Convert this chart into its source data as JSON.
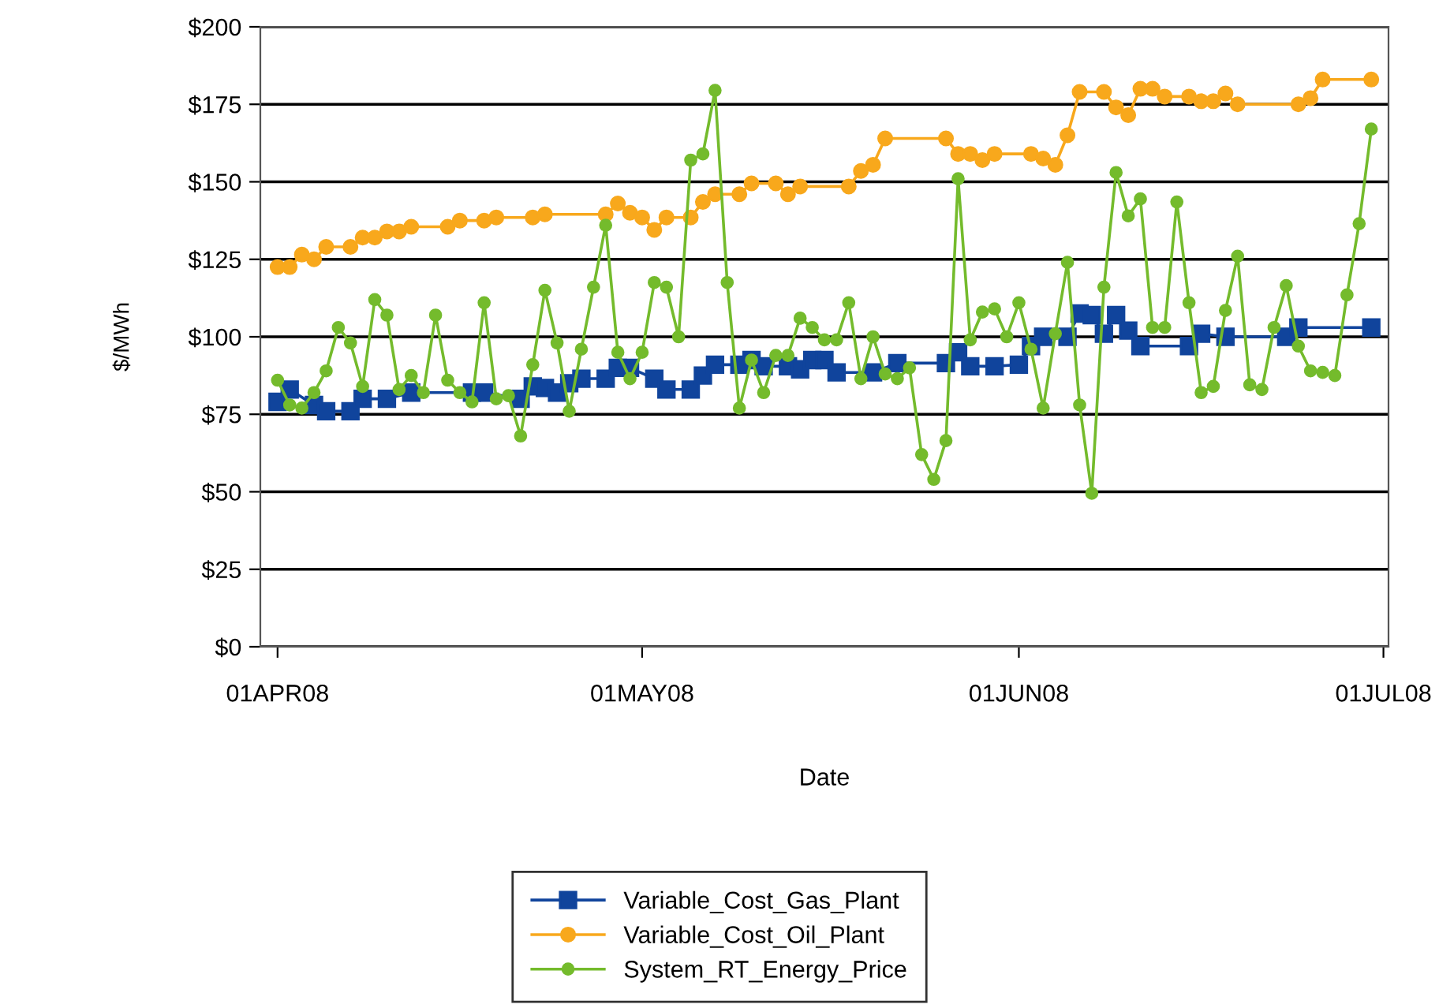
{
  "chart_data": {
    "type": "line",
    "xlabel": "Date",
    "ylabel": "$/MWh",
    "x": [
      "2008-04-01",
      "2008-04-02",
      "2008-04-03",
      "2008-04-04",
      "2008-04-05",
      "2008-04-06",
      "2008-04-07",
      "2008-04-08",
      "2008-04-09",
      "2008-04-10",
      "2008-04-11",
      "2008-04-12",
      "2008-04-13",
      "2008-04-14",
      "2008-04-15",
      "2008-04-16",
      "2008-04-17",
      "2008-04-18",
      "2008-04-19",
      "2008-04-20",
      "2008-04-21",
      "2008-04-22",
      "2008-04-23",
      "2008-04-24",
      "2008-04-25",
      "2008-04-26",
      "2008-04-27",
      "2008-04-28",
      "2008-04-29",
      "2008-04-30",
      "2008-05-01",
      "2008-05-02",
      "2008-05-03",
      "2008-05-04",
      "2008-05-05",
      "2008-05-06",
      "2008-05-07",
      "2008-05-08",
      "2008-05-09",
      "2008-05-10",
      "2008-05-11",
      "2008-05-12",
      "2008-05-13",
      "2008-05-14",
      "2008-05-15",
      "2008-05-16",
      "2008-05-17",
      "2008-05-18",
      "2008-05-19",
      "2008-05-20",
      "2008-05-21",
      "2008-05-22",
      "2008-05-23",
      "2008-05-24",
      "2008-05-25",
      "2008-05-26",
      "2008-05-27",
      "2008-05-28",
      "2008-05-29",
      "2008-05-30",
      "2008-05-31",
      "2008-06-01",
      "2008-06-02",
      "2008-06-03",
      "2008-06-04",
      "2008-06-05",
      "2008-06-06",
      "2008-06-07",
      "2008-06-08",
      "2008-06-09",
      "2008-06-10",
      "2008-06-11",
      "2008-06-12",
      "2008-06-13",
      "2008-06-14",
      "2008-06-15",
      "2008-06-16",
      "2008-06-17",
      "2008-06-18",
      "2008-06-19",
      "2008-06-20",
      "2008-06-21",
      "2008-06-22",
      "2008-06-23",
      "2008-06-24",
      "2008-06-25",
      "2008-06-26",
      "2008-06-27",
      "2008-06-28",
      "2008-06-29",
      "2008-06-30"
    ],
    "series": [
      {
        "name": "Variable_Cost_Gas_Plant",
        "color": "#10449c",
        "marker": "square",
        "x": [
          "2008-04-01",
          "2008-04-02",
          "2008-04-04",
          "2008-04-05",
          "2008-04-07",
          "2008-04-08",
          "2008-04-10",
          "2008-04-12",
          "2008-04-17",
          "2008-04-18",
          "2008-04-21",
          "2008-04-22",
          "2008-04-23",
          "2008-04-24",
          "2008-04-25",
          "2008-04-26",
          "2008-04-28",
          "2008-04-29",
          "2008-04-30",
          "2008-05-02",
          "2008-05-03",
          "2008-05-05",
          "2008-05-06",
          "2008-05-07",
          "2008-05-09",
          "2008-05-10",
          "2008-05-11",
          "2008-05-13",
          "2008-05-14",
          "2008-05-15",
          "2008-05-16",
          "2008-05-17",
          "2008-05-20",
          "2008-05-22",
          "2008-05-26",
          "2008-05-27",
          "2008-05-28",
          "2008-05-30",
          "2008-06-01",
          "2008-06-02",
          "2008-06-03",
          "2008-06-05",
          "2008-06-06",
          "2008-06-07",
          "2008-06-08",
          "2008-06-09",
          "2008-06-10",
          "2008-06-11",
          "2008-06-15",
          "2008-06-16",
          "2008-06-18",
          "2008-06-23",
          "2008-06-24",
          "2008-06-30"
        ],
        "values": [
          79,
          83,
          78,
          76,
          76,
          80,
          80,
          82,
          82,
          82,
          80,
          84,
          83.5,
          82,
          85,
          86.5,
          86.5,
          90,
          90,
          86.5,
          83,
          83,
          87.5,
          91,
          91,
          92.5,
          90.5,
          90.5,
          89.5,
          92.5,
          92.5,
          88.5,
          88.5,
          91.5,
          91.5,
          95,
          90.5,
          90.5,
          91,
          97,
          100,
          100,
          107.5,
          107,
          101,
          107,
          102,
          97,
          97,
          101,
          100,
          100,
          103,
          103
        ]
      },
      {
        "name": "Variable_Cost_Oil_Plant",
        "color": "#f8a81c",
        "marker": "circle",
        "x": [
          "2008-04-01",
          "2008-04-02",
          "2008-04-03",
          "2008-04-04",
          "2008-04-05",
          "2008-04-07",
          "2008-04-08",
          "2008-04-09",
          "2008-04-10",
          "2008-04-11",
          "2008-04-12",
          "2008-04-15",
          "2008-04-16",
          "2008-04-18",
          "2008-04-19",
          "2008-04-22",
          "2008-04-23",
          "2008-04-28",
          "2008-04-29",
          "2008-04-30",
          "2008-05-01",
          "2008-05-02",
          "2008-05-03",
          "2008-05-05",
          "2008-05-06",
          "2008-05-07",
          "2008-05-09",
          "2008-05-10",
          "2008-05-12",
          "2008-05-13",
          "2008-05-14",
          "2008-05-18",
          "2008-05-19",
          "2008-05-20",
          "2008-05-21",
          "2008-05-26",
          "2008-05-27",
          "2008-05-28",
          "2008-05-29",
          "2008-05-30",
          "2008-06-02",
          "2008-06-03",
          "2008-06-04",
          "2008-06-05",
          "2008-06-06",
          "2008-06-08",
          "2008-06-09",
          "2008-06-10",
          "2008-06-11",
          "2008-06-12",
          "2008-06-13",
          "2008-06-15",
          "2008-06-16",
          "2008-06-17",
          "2008-06-18",
          "2008-06-19",
          "2008-06-24",
          "2008-06-25",
          "2008-06-26",
          "2008-06-30"
        ],
        "values": [
          122.5,
          122.5,
          126.5,
          125,
          129,
          129,
          132,
          132,
          134,
          134,
          135.5,
          135.5,
          137.5,
          137.5,
          138.5,
          138.5,
          139.5,
          139.5,
          143,
          140,
          138.5,
          134.5,
          138.5,
          138.5,
          143.5,
          146,
          146,
          149.5,
          149.5,
          146,
          148.5,
          148.5,
          153.5,
          155.5,
          164,
          164,
          159,
          159,
          157,
          159,
          159,
          157.5,
          155.5,
          165,
          179,
          179,
          174,
          171.5,
          180,
          180,
          177.5,
          177.5,
          176,
          176,
          178.5,
          175,
          175,
          177,
          183,
          183
        ]
      },
      {
        "name": "System_RT_Energy_Price",
        "color": "#74bb2c",
        "marker": "circle",
        "values": [
          86,
          78,
          77,
          82,
          89,
          103,
          98,
          84,
          112,
          107,
          83,
          87.5,
          82,
          107,
          86,
          82,
          79,
          111,
          80,
          81,
          68,
          91,
          115,
          98,
          76,
          96,
          116,
          136,
          95,
          86.5,
          95,
          117.5,
          116,
          100,
          157,
          159,
          179.5,
          117.5,
          77,
          92.5,
          82,
          94,
          94,
          106,
          103,
          99,
          99,
          111,
          86.5,
          100,
          88,
          86.5,
          90,
          62,
          54,
          66.5,
          151,
          99,
          108,
          109,
          100,
          111,
          96,
          77,
          101,
          124,
          78,
          49.5,
          116,
          153,
          139,
          144.5,
          103,
          103,
          143.5,
          111,
          82,
          84,
          108.5,
          126,
          84.5,
          83,
          103,
          116.5,
          97,
          89,
          88.5,
          87.5,
          113.5,
          136.5,
          167
        ]
      }
    ],
    "xlim": [
      "2008-03-30T14:00",
      "2008-07-01T10:00"
    ],
    "xticks": [
      {
        "value": "2008-04-01",
        "label": "01APR08"
      },
      {
        "value": "2008-05-01",
        "label": "01MAY08"
      },
      {
        "value": "2008-06-01",
        "label": "01JUN08"
      },
      {
        "value": "2008-07-01",
        "label": "01JUL08"
      }
    ],
    "ylim": [
      0,
      200
    ],
    "yticks": [
      {
        "value": 0,
        "label": "$0"
      },
      {
        "value": 25,
        "label": "$25"
      },
      {
        "value": 50,
        "label": "$50"
      },
      {
        "value": 75,
        "label": "$75"
      },
      {
        "value": 100,
        "label": "$100"
      },
      {
        "value": 125,
        "label": "$125"
      },
      {
        "value": 150,
        "label": "$150"
      },
      {
        "value": 175,
        "label": "$175"
      },
      {
        "value": 200,
        "label": "$200"
      }
    ],
    "grid": "y",
    "legend": "bottom",
    "line_style": "solid"
  }
}
